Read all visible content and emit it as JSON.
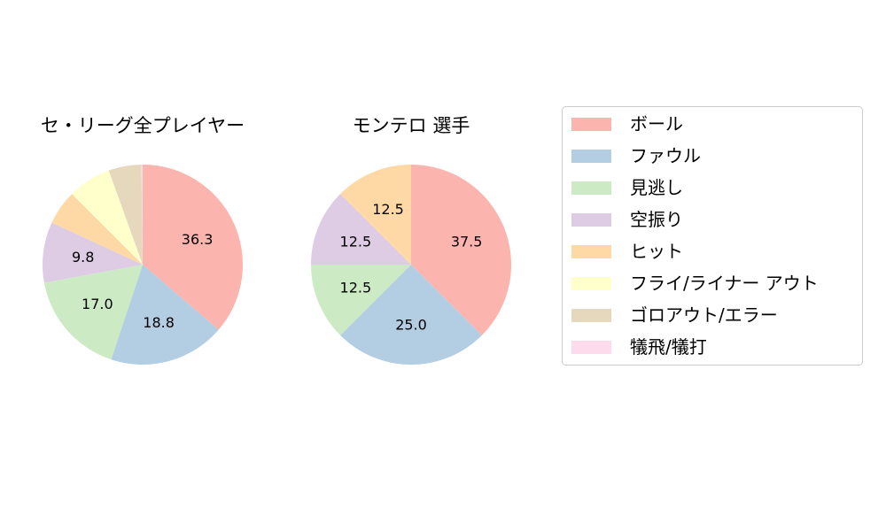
{
  "chart_data": [
    {
      "type": "pie",
      "title": "セ・リーグ全プレイヤー",
      "categories": [
        "ボール",
        "ファウル",
        "見逃し",
        "空振り",
        "ヒット",
        "フライ/ライナー アウト",
        "ゴロアウト/エラー",
        "犠飛/犠打"
      ],
      "values": [
        36.3,
        18.8,
        17.0,
        9.8,
        5.6,
        7.0,
        5.3,
        0.2
      ],
      "labels": [
        "36.3",
        "18.8",
        "17.0",
        "9.8",
        "",
        "",
        "",
        ""
      ]
    },
    {
      "type": "pie",
      "title": "モンテロ  選手",
      "categories": [
        "ボール",
        "ファウル",
        "見逃し",
        "空振り",
        "ヒット",
        "フライ/ライナー アウト",
        "ゴロアウト/エラー",
        "犠飛/犠打"
      ],
      "values": [
        37.5,
        25.0,
        12.5,
        12.5,
        12.5,
        0,
        0,
        0
      ],
      "labels": [
        "37.5",
        "25.0",
        "12.5",
        "12.5",
        "12.5",
        "",
        "",
        ""
      ]
    }
  ],
  "legend": {
    "placement": "right",
    "items": [
      {
        "label": "ボール",
        "color": "#fbb4ae"
      },
      {
        "label": "ファウル",
        "color": "#b3cde3"
      },
      {
        "label": "見逃し",
        "color": "#ccebc5"
      },
      {
        "label": "空振り",
        "color": "#decbe4"
      },
      {
        "label": "ヒット",
        "color": "#fed9a6"
      },
      {
        "label": "フライ/ライナー アウト",
        "color": "#ffffcc"
      },
      {
        "label": "ゴロアウト/エラー",
        "color": "#e5d8bd"
      },
      {
        "label": "犠飛/犠打",
        "color": "#fddaec"
      }
    ]
  }
}
